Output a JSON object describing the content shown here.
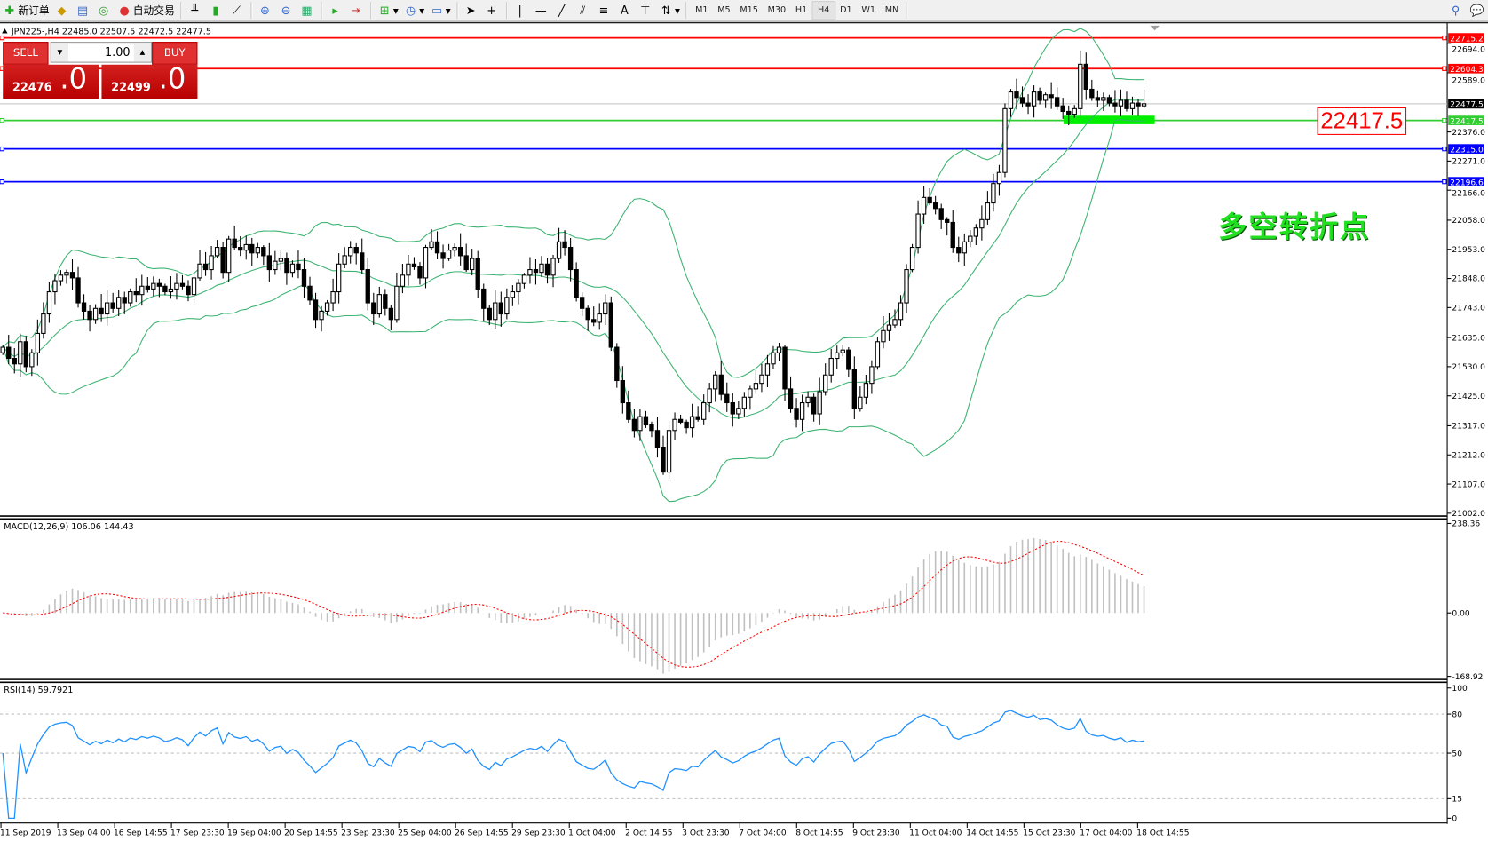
{
  "toolbar": {
    "new_order": "新订单",
    "auto_trading": "自动交易",
    "timeframes": [
      "M1",
      "M5",
      "M15",
      "M30",
      "H1",
      "H4",
      "D1",
      "W1",
      "MN"
    ],
    "active_timeframe": "H4"
  },
  "chart": {
    "header": "JPN225-,H4  22485.0 22507.5 22472.5 22477.5",
    "sell_label": "SELL",
    "buy_label": "BUY",
    "lot": "1.00",
    "sell_price_main": "22476",
    "sell_price_frac": ".0",
    "buy_price_main": "22499",
    "buy_price_frac": ".0",
    "annotation_text": "多空转折点",
    "annotation_price": "22417.5"
  },
  "chart_data": {
    "type": "candlestick",
    "symbol": "JPN225-",
    "timeframe": "H4",
    "ylim": [
      21002.0,
      22715.2
    ],
    "price_ticks": [
      "22694.0",
      "22589.0",
      "22376.0",
      "22271.0",
      "22166.0",
      "22058.0",
      "21953.0",
      "21848.0",
      "21743.0",
      "21635.0",
      "21530.0",
      "21425.0",
      "21317.0",
      "21212.0",
      "21107.0",
      "21002.0"
    ],
    "levels": [
      {
        "price": 22715.2,
        "label": "22715.2",
        "color": "#ff0000"
      },
      {
        "price": 22604.3,
        "label": "22604.3",
        "color": "#ff0000"
      },
      {
        "price": 22417.5,
        "label": "22417.5",
        "color": "#32cd32"
      },
      {
        "price": 22315.0,
        "label": "22315.0",
        "color": "#0000ff"
      },
      {
        "price": 22196.6,
        "label": "22196.6",
        "color": "#0000ff"
      }
    ],
    "bid": {
      "price": 22477.5,
      "label": "22477.5"
    },
    "x_labels": [
      "11 Sep 2019",
      "13 Sep 04:00",
      "16 Sep 14:55",
      "17 Sep 23:30",
      "19 Sep 04:00",
      "20 Sep 14:55",
      "23 Sep 23:30",
      "25 Sep 04:00",
      "26 Sep 14:55",
      "29 Sep 23:30",
      "1 Oct 04:00",
      "2 Oct 14:55",
      "3 Oct 23:30",
      "7 Oct 04:00",
      "8 Oct 14:55",
      "9 Oct 23:30",
      "11 Oct 04:00",
      "14 Oct 14:55",
      "15 Oct 23:30",
      "17 Oct 04:00",
      "18 Oct 14:55"
    ],
    "close": [
      21600,
      21560,
      21540,
      21620,
      21530,
      21580,
      21650,
      21720,
      21800,
      21840,
      21860,
      21870,
      21850,
      21760,
      21730,
      21700,
      21740,
      21720,
      21760,
      21740,
      21780,
      21760,
      21800,
      21790,
      21820,
      21810,
      21830,
      21820,
      21800,
      21810,
      21830,
      21820,
      21790,
      21850,
      21900,
      21880,
      21930,
      21960,
      21870,
      21990,
      21960,
      21950,
      21970,
      21940,
      21960,
      21930,
      21880,
      21910,
      21920,
      21870,
      21900,
      21880,
      21820,
      21770,
      21700,
      21730,
      21760,
      21800,
      21900,
      21930,
      21960,
      21940,
      21880,
      21760,
      21720,
      21790,
      21740,
      21700,
      21820,
      21860,
      21900,
      21890,
      21850,
      21960,
      21980,
      21940,
      21920,
      21950,
      21960,
      21930,
      21880,
      21920,
      21810,
      21740,
      21700,
      21760,
      21720,
      21780,
      21800,
      21830,
      21860,
      21880,
      21870,
      21900,
      21860,
      21920,
      21980,
      21960,
      21880,
      21780,
      21740,
      21700,
      21690,
      21720,
      21760,
      21600,
      21480,
      21400,
      21340,
      21300,
      21350,
      21320,
      21300,
      21240,
      21150,
      21300,
      21340,
      21330,
      21310,
      21350,
      21340,
      21400,
      21450,
      21500,
      21430,
      21400,
      21360,
      21380,
      21420,
      21450,
      21470,
      21500,
      21540,
      21580,
      21600,
      21450,
      21380,
      21340,
      21400,
      21420,
      21360,
      21440,
      21500,
      21560,
      21580,
      21590,
      21520,
      21380,
      21420,
      21470,
      21530,
      21620,
      21660,
      21680,
      21700,
      21760,
      21880,
      21960,
      22080,
      22140,
      22120,
      22100,
      22060,
      22050,
      21960,
      21940,
      21980,
      22000,
      22030,
      22060,
      22120,
      22190,
      22230,
      22460,
      22520,
      22500,
      22480,
      22470,
      22520,
      22490,
      22510,
      22500,
      22470,
      22450,
      22440,
      22460,
      22620,
      22530,
      22500,
      22490,
      22500,
      22480,
      22470,
      22490,
      22460,
      22480,
      22470,
      22477.5
    ],
    "bollinger": {
      "period": 20,
      "deviation": 2,
      "color": "#3cb371"
    },
    "macd": {
      "label": "MACD(12,26,9) 106.06 144.43",
      "ticks": [
        "238.36",
        "0.00",
        "-168.92"
      ],
      "ylim": [
        -168.92,
        238.36
      ],
      "histogram_color": "#c0c0c0",
      "signal_color": "#ff0000"
    },
    "rsi": {
      "label": "RSI(14) 59.7921",
      "ticks": [
        "100",
        "80",
        "50",
        "15",
        "0"
      ],
      "levels": [
        80,
        50,
        15
      ],
      "ylim": [
        0,
        100
      ],
      "color": "#1e90ff"
    }
  }
}
